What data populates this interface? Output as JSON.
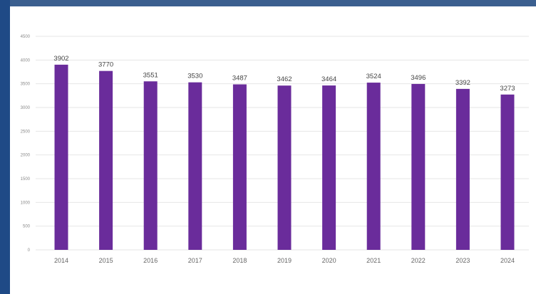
{
  "chart_data": {
    "type": "bar",
    "categories": [
      "2014",
      "2015",
      "2016",
      "2017",
      "2018",
      "2019",
      "2020",
      "2021",
      "2022",
      "2023",
      "2024"
    ],
    "values": [
      3902,
      3770,
      3551,
      3530,
      3487,
      3462,
      3464,
      3524,
      3496,
      3392,
      3273
    ],
    "data_labels": [
      "3902",
      "3770",
      "3551",
      "3530",
      "3487",
      "3462",
      "3464",
      "3524",
      "3496",
      "3392",
      "3273"
    ],
    "y_ticks": [
      0,
      500,
      1000,
      1500,
      2000,
      2500,
      3000,
      3500,
      4000,
      4500
    ],
    "y_tick_labels": [
      "0",
      "500",
      "1000",
      "1500",
      "2000",
      "2500",
      "3000",
      "3500",
      "4000",
      "4500"
    ],
    "ylim": [
      0,
      4500
    ],
    "title": "",
    "xlabel": "",
    "ylabel": "",
    "grid": true,
    "legend": "none",
    "colors": {
      "bar": "#6a2c9b",
      "frame": "#1f4a86",
      "background": "#ffffff"
    }
  }
}
